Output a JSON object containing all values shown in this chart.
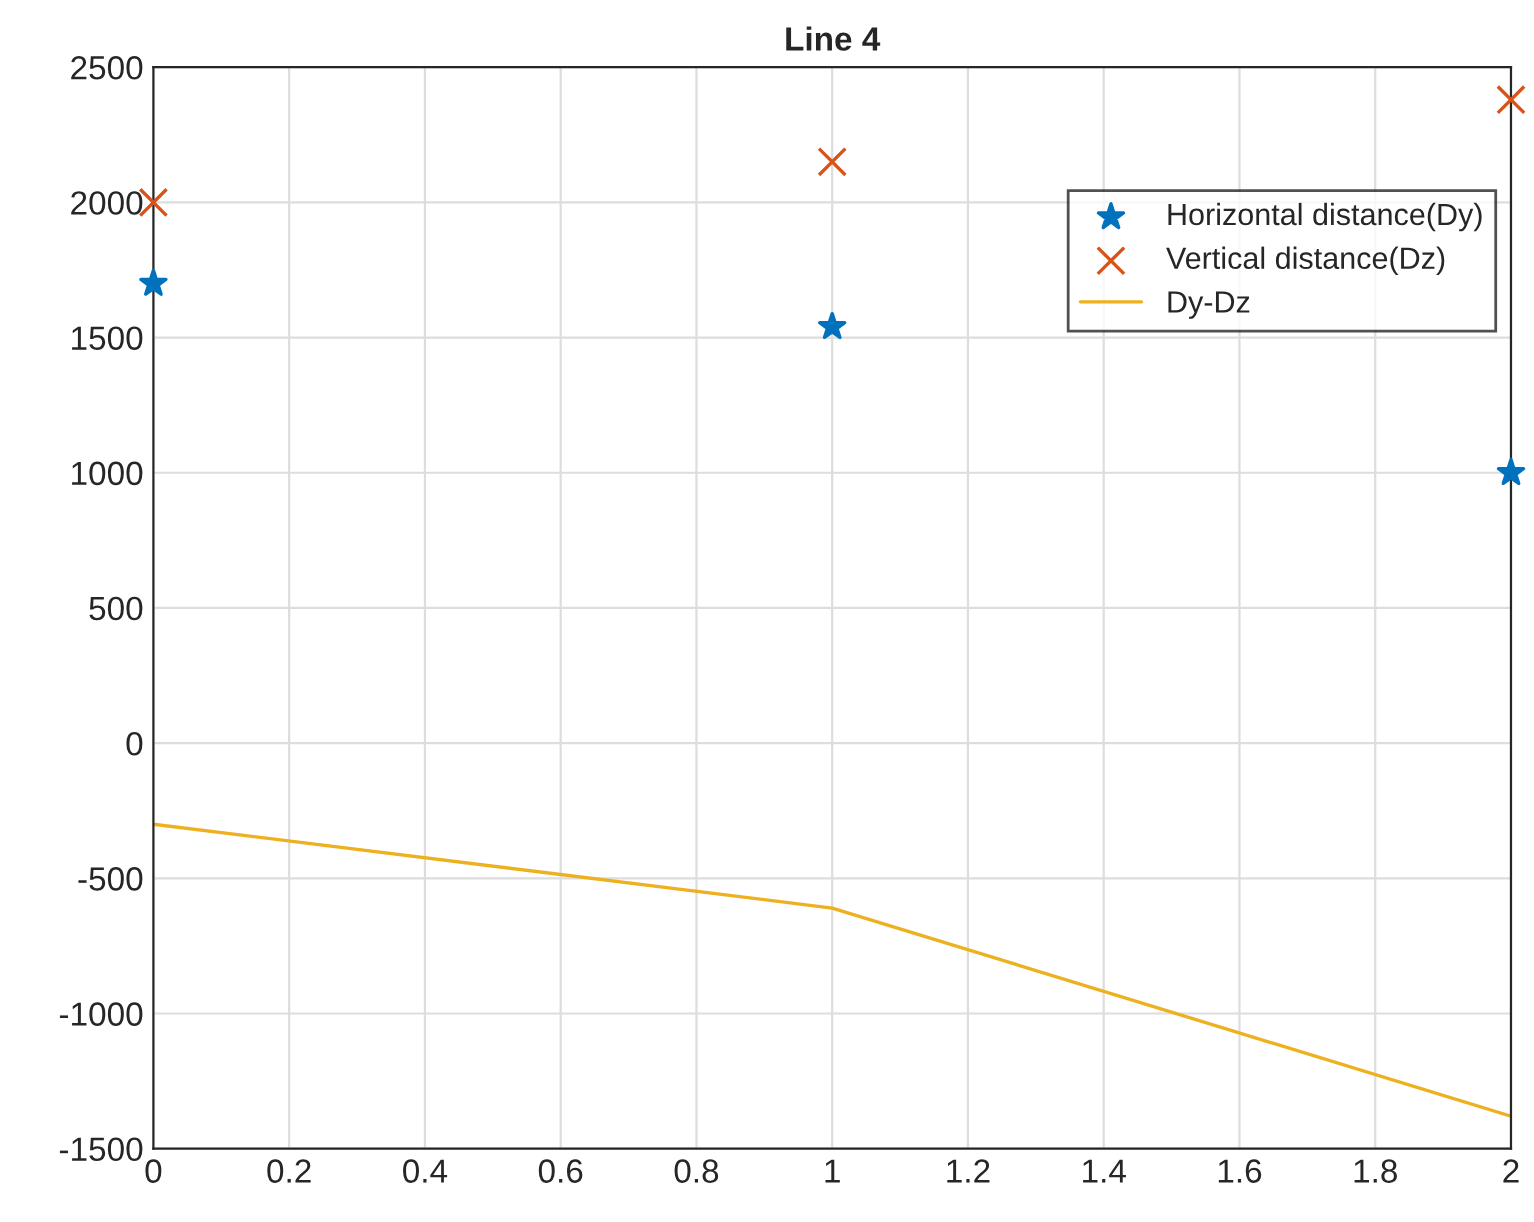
{
  "chart_data": {
    "type": "line",
    "title": "Line 4",
    "x": [
      0,
      1,
      2
    ],
    "series": [
      {
        "name": "Horizontal distance(Dy)",
        "type": "scatter",
        "marker": "star",
        "color": "#0072bd",
        "values": [
          1700,
          1540,
          1000
        ]
      },
      {
        "name": "Vertical distance(Dz)",
        "type": "scatter",
        "marker": "cross",
        "color": "#d95319",
        "values": [
          2000,
          2150,
          2380
        ]
      },
      {
        "name": "Dy-Dz",
        "marker": "none",
        "color": "#edb120",
        "values": [
          -300,
          -610,
          -1380
        ]
      }
    ],
    "xlim": [
      0,
      2
    ],
    "ylim": [
      -1500,
      2500
    ],
    "xticks": [
      0,
      0.2,
      0.4,
      0.6,
      0.8,
      1,
      1.2,
      1.4,
      1.6,
      1.8,
      2
    ],
    "yticks": [
      -1500,
      -1000,
      -500,
      0,
      500,
      1000,
      1500,
      2000,
      2500
    ],
    "grid": true,
    "legend": "top right"
  }
}
